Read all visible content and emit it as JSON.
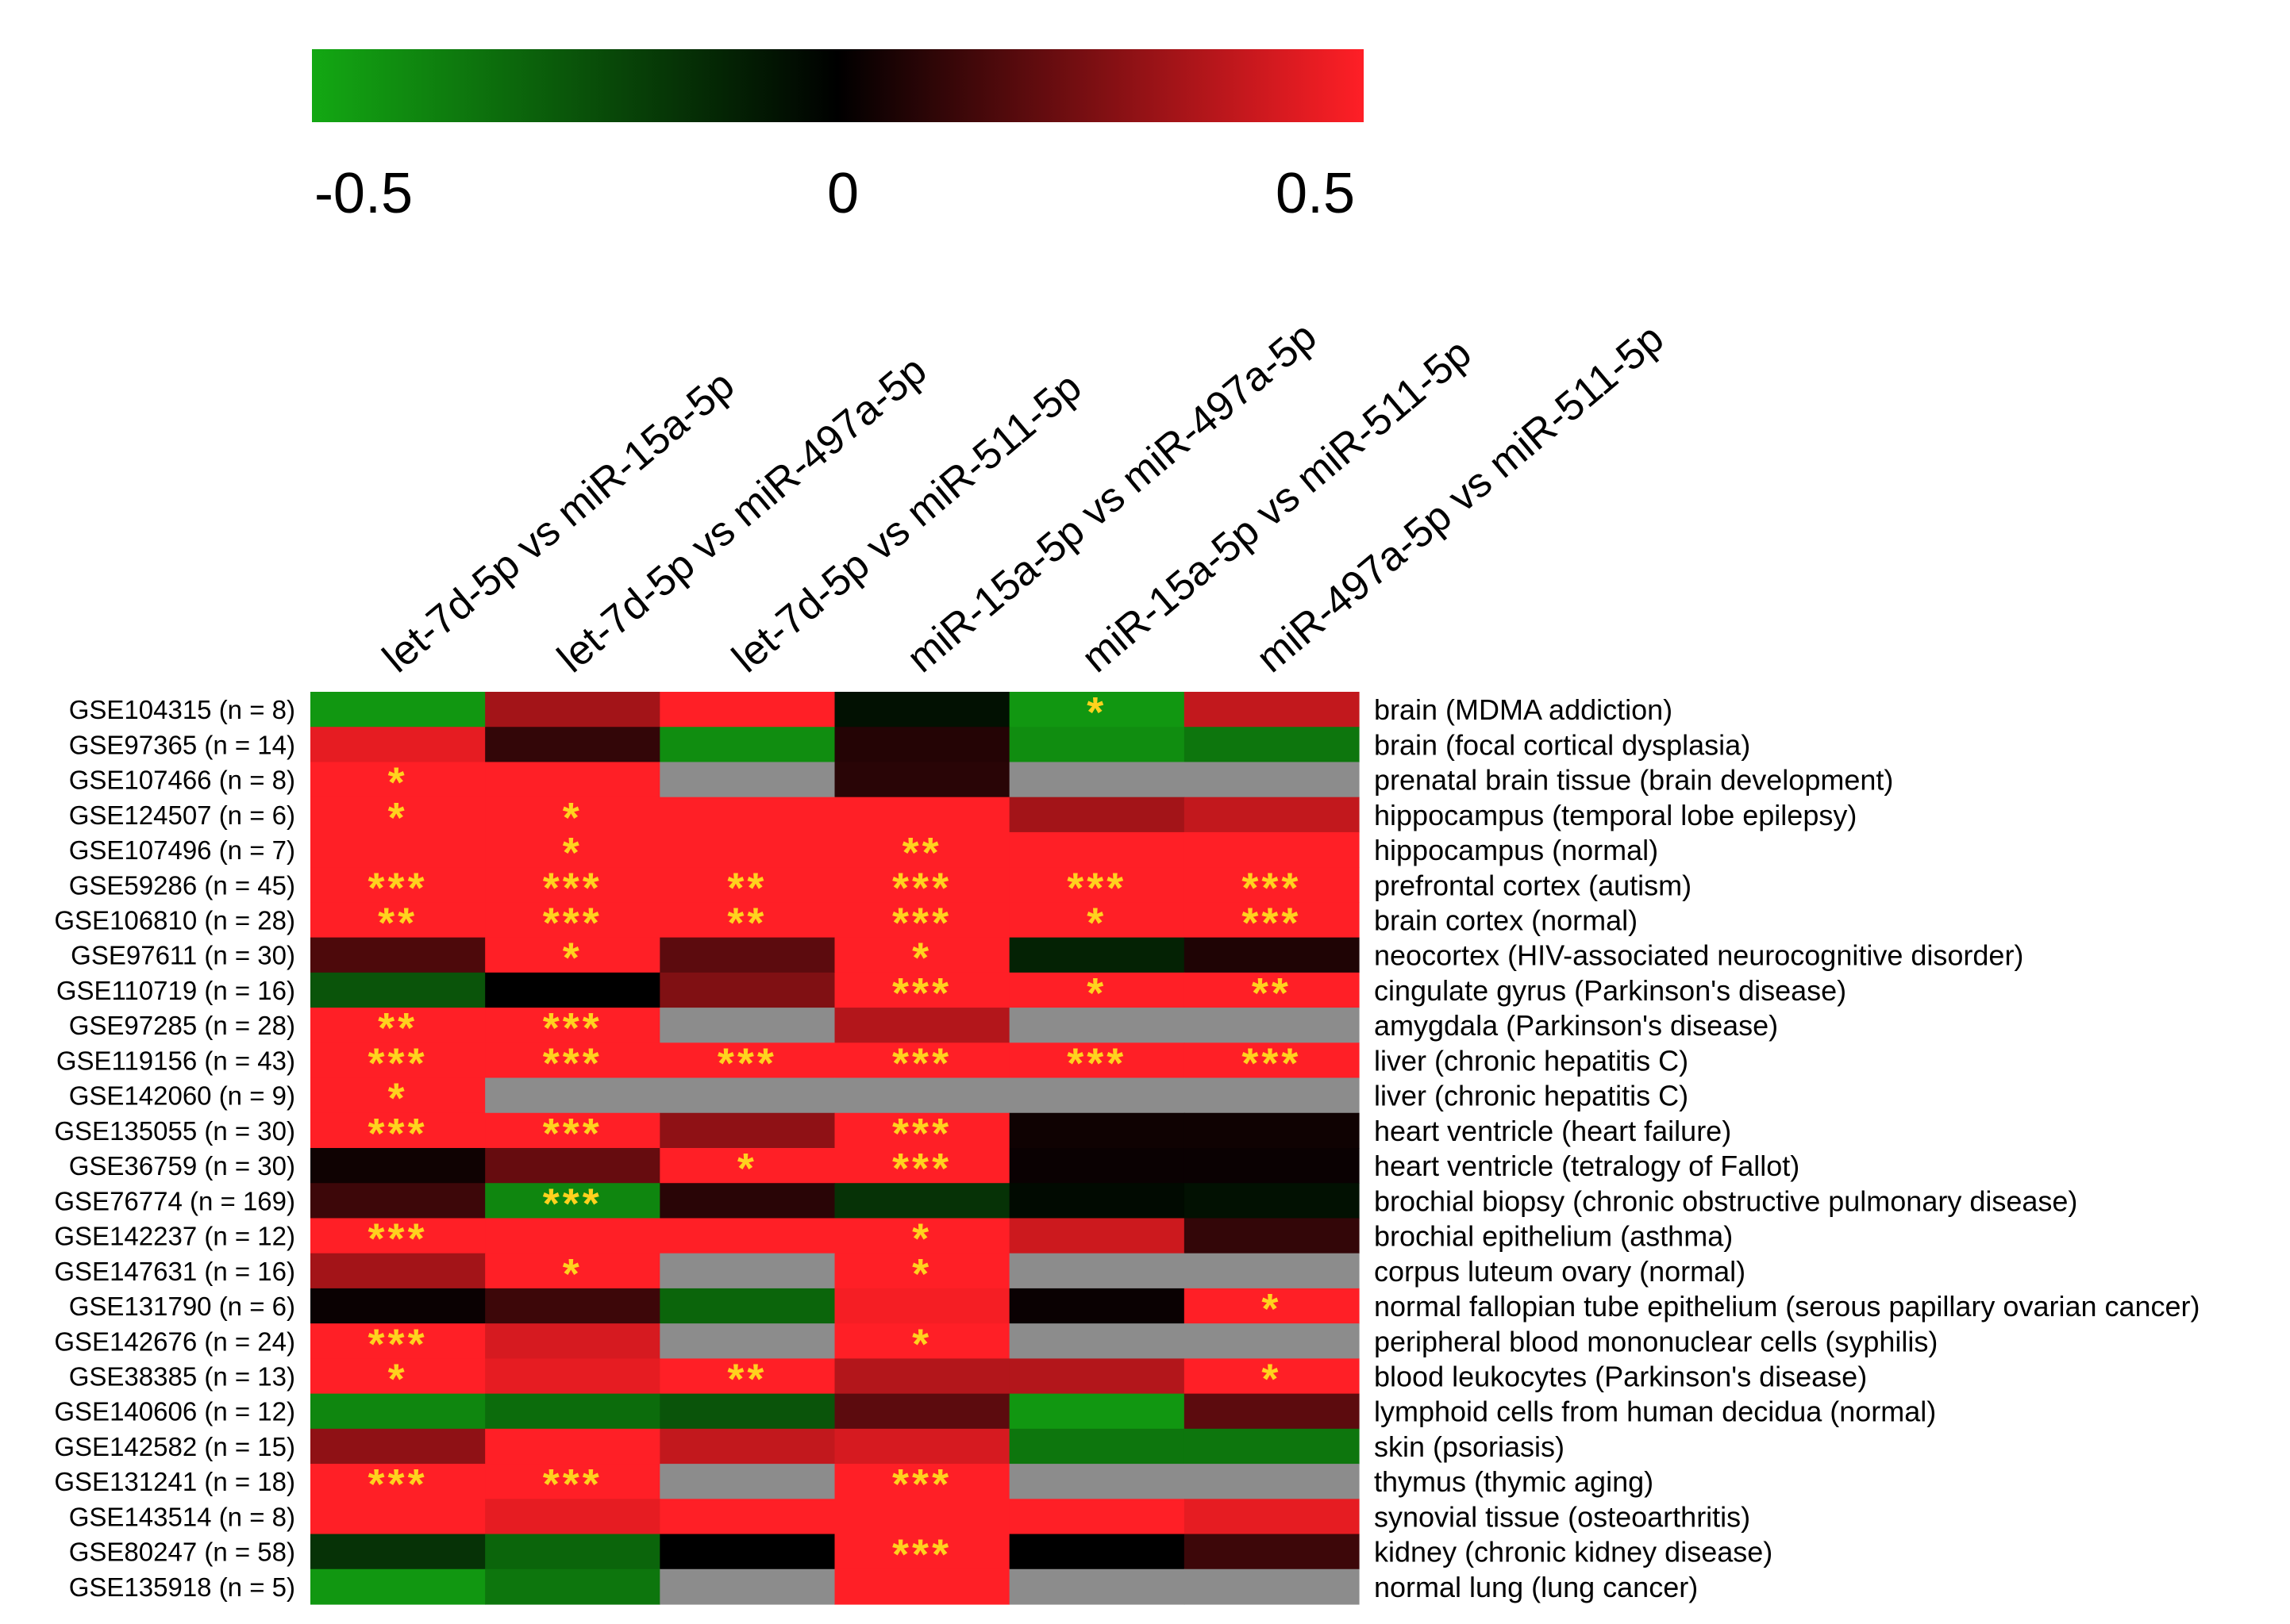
{
  "chart_data": {
    "type": "heatmap",
    "title": "",
    "colorbar": {
      "min": -0.5,
      "max": 0.5,
      "tick_labels": [
        "-0.5",
        "0",
        "0.5"
      ],
      "colors": {
        "low": "#13a813",
        "mid": "#000000",
        "high": "#ff1f26"
      }
    },
    "missing_color": "#8c8c8c",
    "marker_color": "#ffd21e",
    "columns": [
      "let-7d-5p vs miR-15a-5p",
      "let-7d-5p vs miR-497a-5p",
      "let-7d-5p vs miR-511-5p",
      "miR-15a-5p vs miR-497a-5p",
      "miR-15a-5p vs miR-511-5p",
      "miR-497a-5p vs miR-511-5p"
    ],
    "rows": [
      {
        "dataset": "GSE104315 (n = 8)",
        "tissue": "brain (MDMA addiction)",
        "values": [
          -0.45,
          0.32,
          0.55,
          -0.05,
          -0.45,
          0.38
        ],
        "stars": [
          "",
          "",
          "",
          "",
          "*",
          ""
        ]
      },
      {
        "dataset": "GSE97365 (n = 14)",
        "tissue": "brain (focal cortical dysplasia)",
        "values": [
          0.45,
          0.1,
          -0.42,
          0.07,
          -0.42,
          -0.35
        ],
        "stars": [
          "",
          "",
          "",
          "",
          "",
          ""
        ]
      },
      {
        "dataset": "GSE107466 (n = 8)",
        "tissue": "prenatal brain tissue (brain development)",
        "values": [
          0.5,
          0.5,
          null,
          0.08,
          null,
          null
        ],
        "stars": [
          "*",
          "",
          "",
          "",
          "",
          ""
        ]
      },
      {
        "dataset": "GSE124507 (n = 6)",
        "tissue": "hippocampus (temporal lobe epilepsy)",
        "values": [
          0.5,
          0.5,
          0.5,
          0.5,
          0.32,
          0.38
        ],
        "stars": [
          "*",
          "*",
          "",
          "",
          "",
          ""
        ]
      },
      {
        "dataset": "GSE107496 (n = 7)",
        "tissue": "hippocampus (normal)",
        "values": [
          0.5,
          0.5,
          0.5,
          0.5,
          0.5,
          0.5
        ],
        "stars": [
          "",
          "*",
          "",
          "**",
          "",
          ""
        ]
      },
      {
        "dataset": "GSE59286 (n = 45)",
        "tissue": "prefrontal cortex (autism)",
        "values": [
          0.5,
          0.5,
          0.55,
          0.5,
          0.5,
          0.5
        ],
        "stars": [
          "***",
          "***",
          "**",
          "***",
          "***",
          "***"
        ]
      },
      {
        "dataset": "GSE106810 (n = 28)",
        "tissue": "brain cortex (normal)",
        "values": [
          0.5,
          0.5,
          0.5,
          0.5,
          0.55,
          0.5
        ],
        "stars": [
          "**",
          "***",
          "**",
          "***",
          "*",
          "***"
        ]
      },
      {
        "dataset": "GSE97611 (n = 30)",
        "tissue": "neocortex (HIV-associated neurocognitive disorder)",
        "values": [
          0.15,
          0.55,
          0.18,
          0.5,
          -0.1,
          0.06
        ],
        "stars": [
          "",
          "*",
          "",
          "*",
          "",
          ""
        ]
      },
      {
        "dataset": "GSE110719 (n = 16)",
        "tissue": "cingulate gyrus (Parkinson's disease)",
        "values": [
          -0.25,
          0.0,
          0.25,
          0.5,
          0.5,
          0.5
        ],
        "stars": [
          "",
          "",
          "",
          "***",
          "*",
          "**"
        ]
      },
      {
        "dataset": "GSE97285 (n = 28)",
        "tissue": "amygdala (Parkinson's disease)",
        "values": [
          0.5,
          0.5,
          null,
          0.35,
          null,
          null
        ],
        "stars": [
          "**",
          "***",
          "",
          "",
          "",
          ""
        ]
      },
      {
        "dataset": "GSE119156 (n = 43)",
        "tissue": "liver (chronic hepatitis C)",
        "values": [
          0.5,
          0.5,
          0.5,
          0.5,
          0.5,
          0.5
        ],
        "stars": [
          "***",
          "***",
          "***",
          "***",
          "***",
          "***"
        ]
      },
      {
        "dataset": "GSE142060 (n = 9)",
        "tissue": "liver (chronic hepatitis C)",
        "values": [
          0.5,
          null,
          null,
          null,
          null,
          null
        ],
        "stars": [
          "*",
          "",
          "",
          "",
          "",
          ""
        ]
      },
      {
        "dataset": "GSE135055 (n = 30)",
        "tissue": "heart ventricle (heart failure)",
        "values": [
          0.5,
          0.5,
          0.28,
          0.5,
          0.03,
          0.03
        ],
        "stars": [
          "***",
          "***",
          "",
          "***",
          "",
          ""
        ]
      },
      {
        "dataset": "GSE36759 (n = 30)",
        "tissue": "heart ventricle (tetralogy of Fallot)",
        "values": [
          0.03,
          0.2,
          0.5,
          0.5,
          0.02,
          0.02
        ],
        "stars": [
          "",
          "",
          "*",
          "***",
          "",
          ""
        ]
      },
      {
        "dataset": "GSE76774 (n = 169)",
        "tissue": "brochial biopsy (chronic obstructive pulmonary disease)",
        "values": [
          0.12,
          -0.4,
          0.08,
          -0.15,
          -0.03,
          -0.05
        ],
        "stars": [
          "",
          "***",
          "",
          "",
          "",
          ""
        ]
      },
      {
        "dataset": "GSE142237 (n = 12)",
        "tissue": "brochial epithelium (asthma)",
        "values": [
          0.5,
          0.5,
          0.5,
          0.5,
          0.4,
          0.1
        ],
        "stars": [
          "***",
          "",
          "",
          "*",
          "",
          ""
        ]
      },
      {
        "dataset": "GSE147631 (n = 16)",
        "tissue": "corpus luteum ovary (normal)",
        "values": [
          0.32,
          0.5,
          null,
          0.5,
          null,
          null
        ],
        "stars": [
          "",
          "*",
          "",
          "*",
          "",
          ""
        ]
      },
      {
        "dataset": "GSE131790 (n = 6)",
        "tissue": "normal fallopian tube epithelium (serous papillary ovarian cancer)",
        "values": [
          0.02,
          0.12,
          -0.3,
          0.48,
          0.02,
          0.5
        ],
        "stars": [
          "",
          "",
          "",
          "",
          "",
          "*"
        ]
      },
      {
        "dataset": "GSE142676 (n = 24)",
        "tissue": "peripheral blood mononuclear cells (syphilis)",
        "values": [
          0.5,
          0.42,
          null,
          0.5,
          null,
          null
        ],
        "stars": [
          "***",
          "",
          "",
          "*",
          "",
          ""
        ]
      },
      {
        "dataset": "GSE38385 (n = 13)",
        "tissue": "blood leukocytes (Parkinson's disease)",
        "values": [
          0.5,
          0.45,
          0.5,
          0.35,
          0.35,
          0.5
        ],
        "stars": [
          "*",
          "",
          "**",
          "",
          "",
          "*"
        ]
      },
      {
        "dataset": "GSE140606 (n = 12)",
        "tissue": "lymphoid cells from human decidua (normal)",
        "values": [
          -0.4,
          -0.32,
          -0.25,
          0.18,
          -0.45,
          0.18
        ],
        "stars": [
          "",
          "",
          "",
          "",
          "",
          ""
        ]
      },
      {
        "dataset": "GSE142582 (n = 15)",
        "tissue": "skin (psoriasis)",
        "values": [
          0.28,
          0.5,
          0.38,
          0.42,
          -0.35,
          -0.35
        ],
        "stars": [
          "",
          "",
          "",
          "",
          "",
          ""
        ]
      },
      {
        "dataset": "GSE131241 (n = 18)",
        "tissue": "thymus (thymic aging)",
        "values": [
          0.5,
          0.5,
          null,
          0.5,
          null,
          null
        ],
        "stars": [
          "***",
          "***",
          "",
          "***",
          "",
          ""
        ]
      },
      {
        "dataset": "GSE143514 (n = 8)",
        "tissue": "synovial tissue (osteoarthritis)",
        "values": [
          0.5,
          0.45,
          0.5,
          0.5,
          0.5,
          0.45
        ],
        "stars": [
          "",
          "",
          "",
          "",
          "",
          ""
        ]
      },
      {
        "dataset": "GSE80247 (n = 58)",
        "tissue": "kidney (chronic kidney disease)",
        "values": [
          -0.15,
          -0.3,
          0.0,
          0.5,
          0.0,
          0.12
        ],
        "stars": [
          "",
          "",
          "",
          "***",
          "",
          ""
        ]
      },
      {
        "dataset": "GSE135918 (n = 5)",
        "tissue": "normal lung (lung cancer)",
        "values": [
          -0.45,
          -0.35,
          null,
          0.5,
          null,
          null
        ],
        "stars": [
          "",
          "",
          "",
          "",
          "",
          ""
        ]
      }
    ]
  }
}
